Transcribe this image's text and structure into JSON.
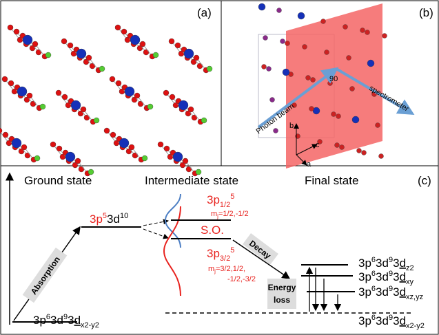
{
  "panels": {
    "a": {
      "label": "(a)"
    },
    "b": {
      "label": "(b)",
      "photon_beam": "Photon beam",
      "spectrometer": "spectrometer",
      "angle": "90",
      "axes": [
        "b",
        "c",
        "a"
      ]
    },
    "c": {
      "label": "(c)"
    }
  },
  "ground_state": {
    "title": "Ground state",
    "level": [
      "3p",
      "6",
      "3d",
      "9",
      "3",
      "d",
      "x2-y2"
    ]
  },
  "intermediate_state": {
    "title": "Intermediate state",
    "level": [
      "3p",
      "5",
      "3d",
      "10"
    ],
    "upper": [
      "3p",
      "1/2",
      "5"
    ],
    "upper_mj": [
      "m",
      "j",
      "=1/2,-1/2"
    ],
    "splitting": "S.O.",
    "lower": [
      "3p",
      "3/2",
      "5"
    ],
    "lower_mj": [
      "m",
      "j",
      "=3/2,1/2,",
      "-1/2,-3/2"
    ]
  },
  "final_state": {
    "title": "Final state",
    "levels": [
      [
        "3p",
        "6",
        "3d",
        "9",
        "3",
        "d",
        "z2"
      ],
      [
        "3p",
        "6",
        "3d",
        "9",
        "3",
        "d",
        "xy"
      ],
      [
        "3p",
        "6",
        "3d",
        "9",
        "3",
        "d",
        "xz,yz"
      ],
      [
        "3p",
        "6",
        "3d",
        "9",
        "3",
        "d",
        "x2-y2"
      ]
    ]
  },
  "arrows": {
    "absorption": "Absorption",
    "decay": "Decay",
    "energy_loss": [
      "Energy",
      "loss"
    ]
  }
}
